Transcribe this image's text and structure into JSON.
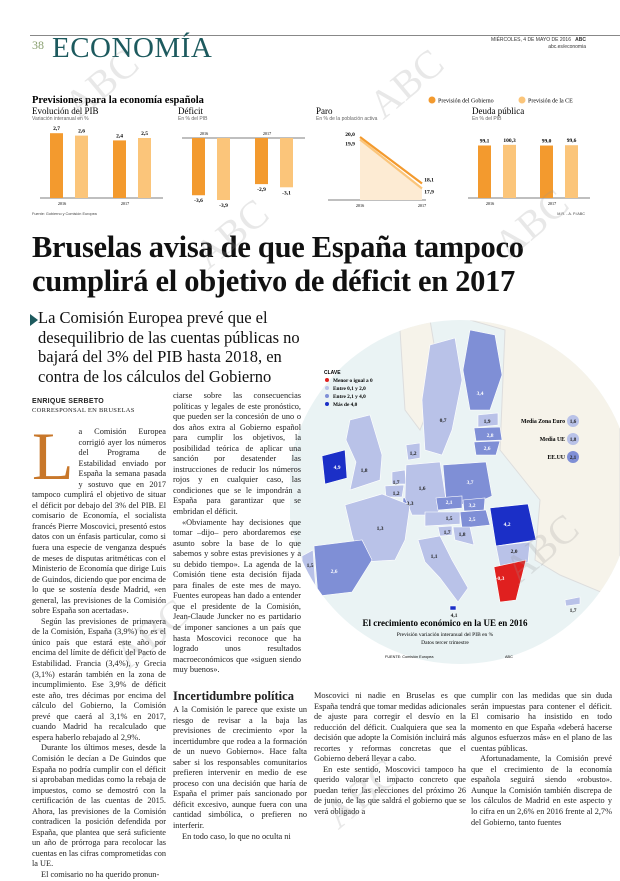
{
  "header": {
    "page_number": "38",
    "section": "ECONOMÍA",
    "date": "MIÉRCOLES, 4 DE MAYO DE 2016",
    "brand": "ABC",
    "url": "abc.es/economia"
  },
  "watermark": "ABC",
  "infographic": {
    "title": "Previsiones para la economía española",
    "legend": [
      {
        "label": "Previsión del Gobierno",
        "color": "#f39a2e"
      },
      {
        "label": "Previsión de la CE",
        "color": "#fbc57a"
      }
    ],
    "source": "Fuente: Gobierno y Comisión Europea",
    "credit": "M.R. - A. P./ABC"
  },
  "chart_data": [
    {
      "type": "bar",
      "title": "Evolución del PIB",
      "subtitle": "Variación interanual en %",
      "categories": [
        "2016",
        "2017"
      ],
      "series": [
        {
          "name": "Previsión del Gobierno",
          "values": [
            2.7,
            2.4
          ]
        },
        {
          "name": "Previsión de la CE",
          "values": [
            2.6,
            2.5
          ]
        }
      ],
      "labels": [
        [
          "2,7",
          "2,4"
        ],
        [
          "2,6",
          "2,5"
        ]
      ]
    },
    {
      "type": "bar",
      "title": "Déficit",
      "subtitle": "En % del PIB",
      "categories": [
        "2016",
        "2017"
      ],
      "series": [
        {
          "name": "Previsión del Gobierno",
          "values": [
            -3.6,
            -2.9
          ]
        },
        {
          "name": "Previsión de la CE",
          "values": [
            -3.9,
            -3.1
          ]
        }
      ],
      "labels": [
        [
          "-3,6",
          "-2,9"
        ],
        [
          "-3,9",
          "-3,1"
        ]
      ]
    },
    {
      "type": "line",
      "title": "Paro",
      "subtitle": "En % de la población activa",
      "categories": [
        "2016",
        "2017"
      ],
      "series": [
        {
          "name": "Previsión del Gobierno",
          "values": [
            20.0,
            18.1
          ]
        },
        {
          "name": "Previsión de la CE",
          "values": [
            19.9,
            17.9
          ]
        }
      ],
      "labels": [
        [
          "20,0",
          "18,1"
        ],
        [
          "19,9",
          "17,9"
        ]
      ]
    },
    {
      "type": "bar",
      "title": "Deuda pública",
      "subtitle": "En % del PIB",
      "categories": [
        "2016",
        "2017"
      ],
      "series": [
        {
          "name": "Previsión del Gobierno",
          "values": [
            99.1,
            99.0
          ]
        },
        {
          "name": "Previsión de la CE",
          "values": [
            100.3,
            99.6
          ]
        }
      ],
      "labels": [
        [
          "99,1",
          "99,0"
        ],
        [
          "100,3",
          "99,6"
        ]
      ]
    }
  ],
  "headline": "Bruselas avisa de que España tampoco cumplirá el objetivo de déficit en 2017",
  "deck": "La Comisión Europea prevé que el desequilibrio de las cuentas públicas no bajará del 3% del PIB hasta 2018, en contra de los cálculos del Gobierno",
  "byline": {
    "author": "ENRIQUE SERBETO",
    "role": "CORRESPONSAL EN BRUSELAS"
  },
  "article": {
    "dropcap": "L",
    "col1": [
      "a Comisión Europea corrigió ayer los números del Programa de Estabilidad enviado por España la semana pasada y sostuvo que en 2017 tampoco cumplirá el objetivo de situar el déficit por debajo del 3% del PIB. El comisario de Economía, el socialista francés Pierre Moscovici, presentó estos datos con un énfasis particular, como si fuera una especie de venganza después de meses de disputas aritméticas con el Ministerio de Economía que dirige Luis de Guindos, diciendo que por encima de lo que se sostenía desde Madrid, «en general, las previsiones de la Comisión sobre España son acertadas».",
      "Según las previsiones de primavera de la Comisión, España (3,9%) no es el único país que estará este año por encima del límite de déficit del Pacto de Estabilidad. Francia (3,4%), y Grecia (3,1%) estarán también en la zona de incumplimiento. Ese 3,9% de déficit este año, tres décimas por encima del cálculo del Gobierno, la Comisión prevé que caerá al 3,1% en 2017, cuando Madrid ha recalculado que espera haberlo rebajado al 2,9%.",
      "Durante los últimos meses, desde la Comisión le decían a De Guindos que España no podría cumplir con el déficit si aprobaban medidas como la rebaja de impuestos, como se demostró con la certificación de las cuentas de 2015. Ahora, las previsiones de la Comisión contradicen la posición defendida por España, que plantea que será suficiente un año de prórroga para recolocar las cuentas en las cifras comprometidas con la UE.",
      "El comisario no ha querido pronun-"
    ],
    "col2_top": [
      "ciarse sobre las consecuencias políticas y legales de este pronóstico, que pueden ser la concesión de uno o dos años extra al Gobierno español para cumplir los objetivos, la posibilidad teórica de aplicar una sanción por desatender las instrucciones de reducir los números rojos y en cualquier caso, las condiciones que se le impondrán a España para garantizar que se embridan el déficit.",
      "«Obviamente hay decisiones que tomar –dijo– pero abordaremos ese asunto sobre la base de lo que sabemos y sobre estas previsiones y a su debido tiempo». La agenda de la Comisión tiene esta decisión fijada para finales de este mes de mayo. Fuentes europeas han dado a entender que el presidente de la Comisión, Jean-Claude Juncker no es partidario de imponer sanciones a un país que hasta Moscovici reconoce que ha logrado unos resultados macroeconómicos que «siguen siendo muy buenos»."
    ],
    "subhead": "Incertidumbre política",
    "col2_bottom": [
      "A la Comisión le parece que existe un riesgo de revisar a la baja las previsiones de crecimiento «por la incertidumbre que rodea a la formación de un nuevo Gobierno». Hace falta saber si los responsables comunitarios prefieren intervenir en medio de ese proceso con una decisión que haría de España el primer país sancionado por déficit excesivo, aunque fuera con una cantidad simbólica, o prefieren no interferir.",
      "En todo caso, lo que no oculta ni"
    ],
    "col3": [
      "Moscovici ni nadie en Bruselas es que España tendrá que tomar medidas adicionales de ajuste para corregir el desvío en la reducción del déficit. Cualquiera que sea la decisión que adopte la Comisión incluirá más recortes y reformas concretas que el Gobierno deberá llevar a cabo.",
      "En este sentido, Moscovici tampoco ha querido valorar el impacto concreto que puedan tener las elecciones del próximo 26 de junio, de las que saldrá el gobierno que se verá obligado a"
    ],
    "col4": [
      "cumplir con las medidas que sin duda serán impuestas para contener el déficit. El comisario ha insistido en todo momento en que España «deberá hacerse algunos esfuerzos más» en el plano de las cuentas públicas.",
      "Afortunadamente, la Comisión prevé que el crecimiento de la economía española seguirá siendo «robusto». Aunque la Comisión también discrepa de los cálculos de Madrid en este aspecto y lo cifra en un 2,6% en 2016 frente al 2,7% del Gobierno, tanto fuentes"
    ]
  },
  "map": {
    "title": "El crecimiento económico en la UE en 2016",
    "subtitle": "Previsión variación interanual del PIB en %",
    "note": "Datos tercer trimestre",
    "source": "FUENTE: Comisión Europea",
    "credit": "ABC",
    "legend_title": "CLAVE",
    "legend": [
      {
        "label": "Menor o igual a 0",
        "color": "#e0201f"
      },
      {
        "label": "Entre 0,1 y 2,0",
        "color": "#b9c2e8"
      },
      {
        "label": "Entre 2,1 y 4,0",
        "color": "#7f8fd6"
      },
      {
        "label": "Más de 4,0",
        "color": "#1b2fc7"
      }
    ],
    "averages": [
      {
        "label": "Media Zona Euro",
        "value": "1,6"
      },
      {
        "label": "Media UE",
        "value": "1,8"
      },
      {
        "label": "EE.UU",
        "value": "2,1"
      }
    ],
    "countries": {
      "finland": "3,4",
      "sweden": "0,7",
      "estonia": "1,9",
      "latvia": "2,8",
      "lithuania": "2,6",
      "ireland": "4,9",
      "uk": "1,8",
      "denmark": "1,2",
      "netherlands": "1,7",
      "belgium": "1,2",
      "luxembourg": "3,3",
      "germany": "1,6",
      "poland": "3,7",
      "czechia": "2,1",
      "slovakia": "3,2",
      "hungary": "2,5",
      "austria": "1,5",
      "romania": "4,2",
      "france": "1,3",
      "slovenia": "1,7",
      "croatia": "1,8",
      "italy": "1,1",
      "bulgaria": "2,0",
      "portugal": "1,5",
      "spain": "2,6",
      "greece": "-0,3",
      "malta": "4,1",
      "cyprus": "1,7"
    }
  }
}
